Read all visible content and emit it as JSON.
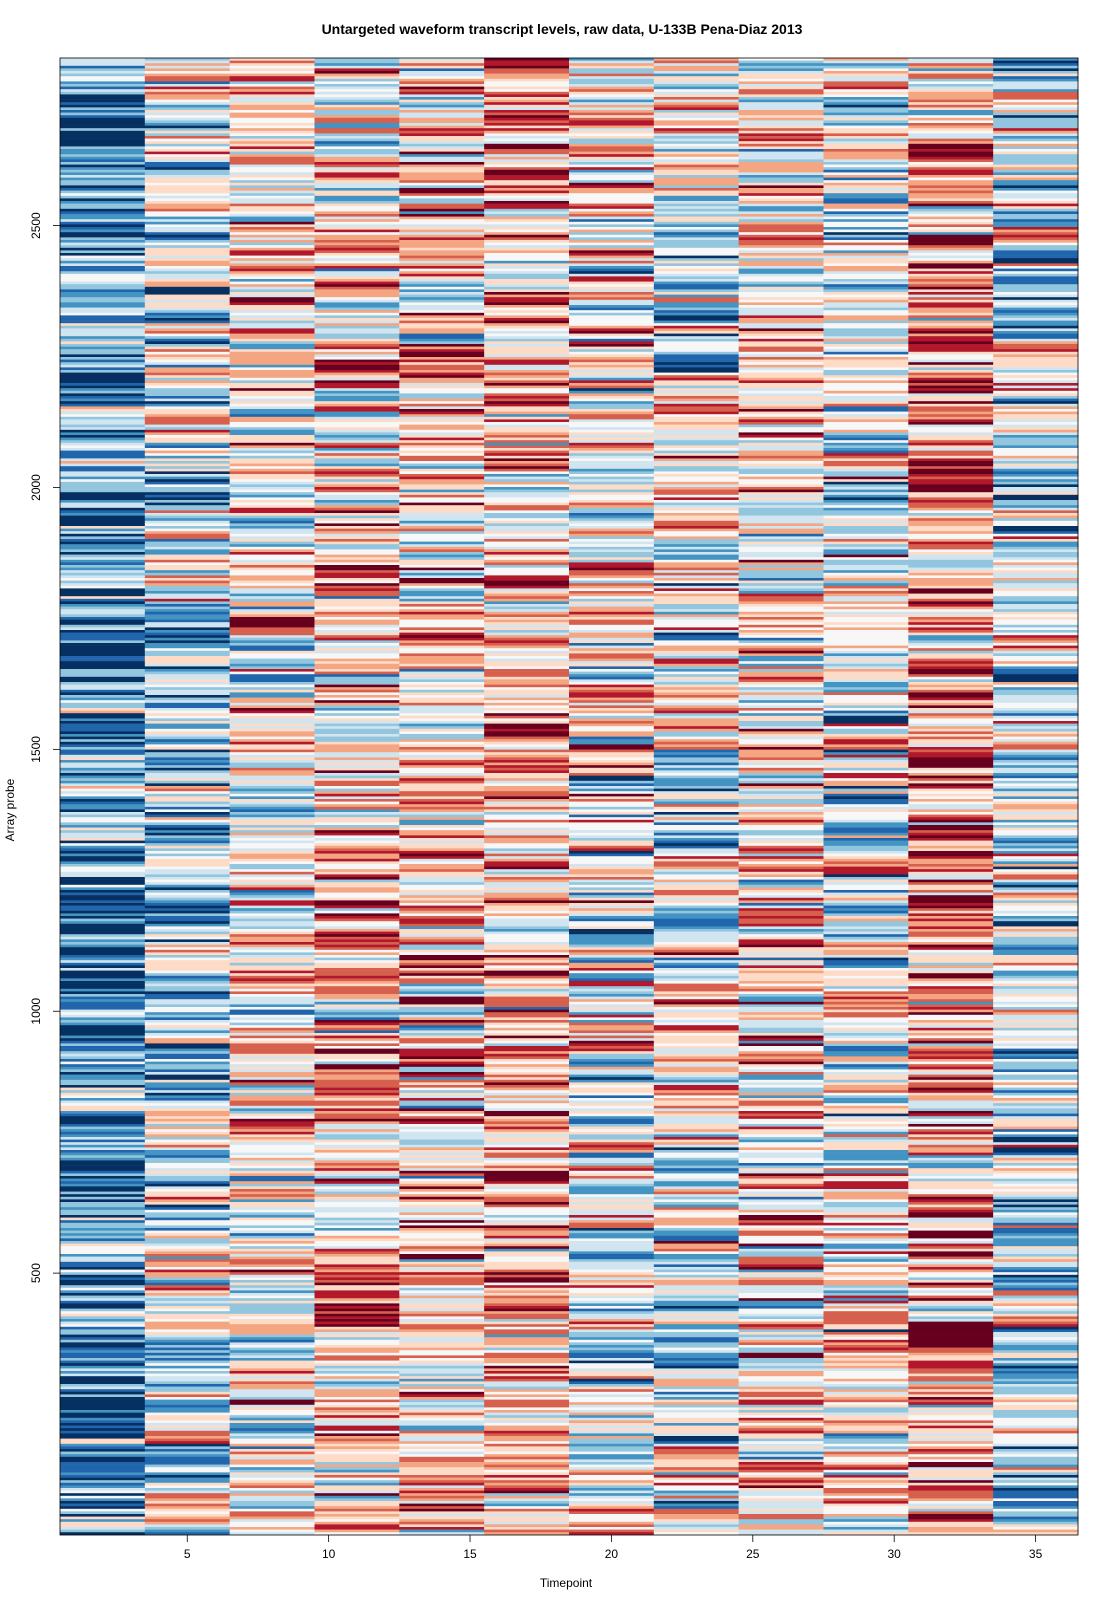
{
  "chart_data": {
    "type": "heatmap",
    "title": "Untargeted waveform transcript levels, raw data, U-133B Pena-Diaz 2013",
    "xlabel": "Timepoint",
    "ylabel": "Array probe",
    "x_columns": [
      2,
      5,
      8,
      11,
      14,
      17,
      20,
      23,
      26,
      29,
      32,
      35
    ],
    "xlim": [
      0.5,
      36.5
    ],
    "ylim": [
      0,
      2820
    ],
    "x_ticks": [
      5,
      10,
      15,
      20,
      25,
      30,
      35
    ],
    "y_ticks": [
      500,
      1000,
      1500,
      2000,
      2500
    ],
    "color_scale": [
      "#053061",
      "#2166ac",
      "#4393c3",
      "#92c5de",
      "#d1e5f0",
      "#f7f7f7",
      "#fddbc7",
      "#f4a582",
      "#d6604d",
      "#b2182b",
      "#67001f"
    ],
    "column_bias": [
      -0.75,
      -0.25,
      0.1,
      0.3,
      0.25,
      0.35,
      0.0,
      -0.05,
      0.15,
      -0.1,
      0.45,
      -0.2
    ],
    "grid": false,
    "legend": "none"
  }
}
